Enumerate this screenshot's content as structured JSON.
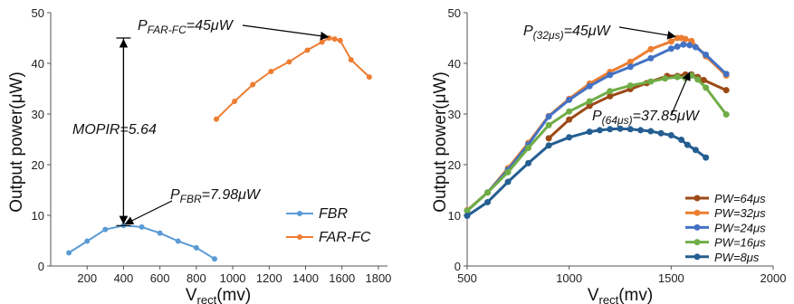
{
  "chart_data": [
    {
      "type": "line",
      "xlabel_main": "V",
      "xlabel_sub": "rect",
      "xlabel_unit": "(mv)",
      "ylabel": "Output power(μW)",
      "xlim": [
        0,
        1850
      ],
      "ylim": [
        0,
        50
      ],
      "xticks": [
        200,
        400,
        600,
        800,
        1000,
        1200,
        1400,
        1600,
        1800
      ],
      "yticks": [
        0,
        10,
        20,
        30,
        40,
        50
      ],
      "series": [
        {
          "name": "FBR",
          "color": "#5b9bd5",
          "x": [
            100,
            200,
            300,
            400,
            500,
            600,
            700,
            800,
            900
          ],
          "y": [
            2.6,
            4.9,
            7.2,
            7.98,
            7.7,
            6.5,
            4.9,
            3.6,
            1.4
          ]
        },
        {
          "name": "FAR-FC",
          "color": "#ed7d31",
          "x": [
            910,
            1010,
            1110,
            1210,
            1310,
            1410,
            1490,
            1530,
            1560,
            1590,
            1650,
            1750
          ],
          "y": [
            29,
            32.5,
            35.8,
            38.4,
            40.3,
            42.6,
            44.2,
            45,
            44.8,
            44.5,
            40.7,
            37.3
          ]
        }
      ],
      "annotations": {
        "far_main": "P",
        "far_sub": "FAR-FC",
        "far_val": "=45μW",
        "fbr_main": "P",
        "fbr_sub": "FBR",
        "fbr_val": "=7.98μW",
        "mopir": "MOPIR=5.64",
        "mopir_top": 45,
        "mopir_bottom": 7.98,
        "mopir_x": 400
      },
      "legend_position": "bottom-right"
    },
    {
      "type": "line",
      "xlabel_main": "V",
      "xlabel_sub": "rect",
      "xlabel_unit": "(mv)",
      "ylabel": "Output power(μW)",
      "xlim": [
        500,
        2000
      ],
      "ylim": [
        0,
        50
      ],
      "xticks": [
        500,
        1000,
        1500,
        2000
      ],
      "yticks": [
        0,
        10,
        20,
        30,
        40,
        50
      ],
      "series": [
        {
          "name": "PW=64μs",
          "color": "#9c4a16",
          "x": [
            900,
            1000,
            1100,
            1200,
            1300,
            1380,
            1480,
            1530,
            1570,
            1600,
            1630,
            1660,
            1770
          ],
          "y": [
            25.2,
            28.9,
            31.6,
            33.5,
            34.9,
            36.1,
            37.5,
            37.5,
            37.8,
            37.8,
            37.3,
            36.7,
            34.7
          ]
        },
        {
          "name": "PW=32μs",
          "color": "#ed7d31",
          "x": [
            500,
            600,
            700,
            800,
            900,
            1000,
            1100,
            1200,
            1300,
            1400,
            1500,
            1530,
            1550,
            1570,
            1600,
            1670,
            1770
          ],
          "y": [
            11,
            14.5,
            19.3,
            24.3,
            29.6,
            33,
            36,
            38.3,
            40.3,
            42.8,
            44.3,
            45,
            45,
            44.8,
            44.4,
            41.4,
            37.6
          ]
        },
        {
          "name": "PW=24μs",
          "color": "#4472c4",
          "x": [
            500,
            600,
            700,
            800,
            900,
            1000,
            1100,
            1200,
            1300,
            1400,
            1500,
            1530,
            1560,
            1590,
            1620,
            1670,
            1770
          ],
          "y": [
            10.9,
            14.5,
            19,
            24,
            29.5,
            32.8,
            35.5,
            37.7,
            39.3,
            41,
            42.9,
            43.3,
            43.7,
            43.6,
            43.2,
            41.7,
            37.9
          ]
        },
        {
          "name": "PW=16μs",
          "color": "#70ad47",
          "x": [
            500,
            600,
            700,
            800,
            900,
            1000,
            1100,
            1200,
            1300,
            1400,
            1470,
            1530,
            1570,
            1600,
            1630,
            1670,
            1770
          ],
          "y": [
            10.9,
            14.5,
            18.5,
            23.3,
            27.8,
            30.5,
            32.5,
            34.5,
            35.6,
            36.4,
            37,
            37.3,
            37.1,
            37.6,
            36.8,
            35.2,
            29.9
          ]
        },
        {
          "name": "PW=8μs",
          "color": "#255e91",
          "x": [
            500,
            600,
            700,
            800,
            900,
            1000,
            1100,
            1150,
            1200,
            1250,
            1300,
            1350,
            1400,
            1450,
            1500,
            1550,
            1580,
            1620,
            1670
          ],
          "y": [
            9.9,
            12.6,
            16.6,
            20.3,
            23.8,
            25.4,
            26.5,
            26.8,
            27,
            27.1,
            27,
            26.8,
            26.6,
            26.2,
            25.8,
            24.9,
            23.9,
            22.9,
            21.4
          ]
        }
      ],
      "annotations": {
        "p32_main": "P",
        "p32_sub": "(32μs)",
        "p32_val": "=45μW",
        "p64_main": "P",
        "p64_sub": "(64μs)",
        "p64_val": "=37.85μW"
      },
      "legend_position": "bottom-right"
    }
  ]
}
